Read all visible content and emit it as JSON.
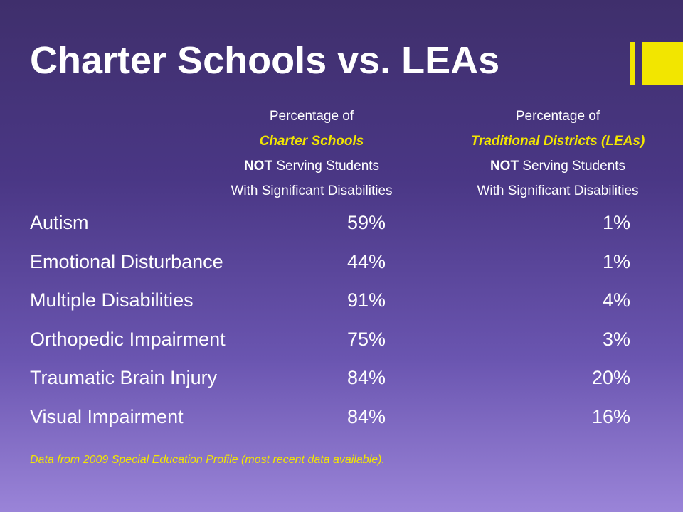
{
  "slide": {
    "title": "Charter Schools vs. LEAs",
    "accent_color": "#f2e600"
  },
  "columns": {
    "charter": {
      "line1": "Percentage of",
      "line2": "Charter Schools",
      "line3_bold": "NOT",
      "line3_rest": " Serving Students",
      "line4": "With Significant Disabilities"
    },
    "lea": {
      "line1": "Percentage of",
      "line2": "Traditional Districts (LEAs)",
      "line3_bold": "NOT",
      "line3_rest": " Serving Students",
      "line4": "With Significant Disabilities"
    }
  },
  "rows": [
    {
      "label": "Autism",
      "charter": "59%",
      "lea": "1%"
    },
    {
      "label": "Emotional Disturbance",
      "charter": "44%",
      "lea": "1%"
    },
    {
      "label": "Multiple Disabilities",
      "charter": "91%",
      "lea": "4%"
    },
    {
      "label": "Orthopedic Impairment",
      "charter": "75%",
      "lea": "3%"
    },
    {
      "label": "Traumatic Brain Injury",
      "charter": "84%",
      "lea": "20%"
    },
    {
      "label": "Visual Impairment",
      "charter": "84%",
      "lea": "16%"
    }
  ],
  "footnote": "Data from 2009 Special Education Profile (most recent data available)."
}
